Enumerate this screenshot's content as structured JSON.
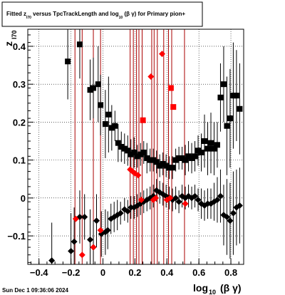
{
  "chart_data": {
    "type": "scatter",
    "title": {
      "prefix": "Fitted  z",
      "prefix_sub": "I70",
      "middle": "  versus TpcTrackLength and log",
      "middle_sub": "10",
      "suffix": " (β  γ) for Primary pion+"
    },
    "ylabel": {
      "main": "z",
      "sub": "I70"
    },
    "xlabel": {
      "main": "log",
      "sub": "10",
      "tail": "(β γ)"
    },
    "timestamp": "Sun Dec  1 09:36:06 2024",
    "xlim": [
      -0.47,
      0.88
    ],
    "ylim": [
      -0.175,
      0.445
    ],
    "xticks": [
      -0.4,
      -0.2,
      0,
      0.2,
      0.4,
      0.6,
      0.8
    ],
    "xtick_labels": [
      "−0.4",
      "−0.2",
      "0",
      "0.2",
      "0.4",
      "0.6",
      "0.8"
    ],
    "yticks": [
      -0.1,
      0,
      0.1,
      0.2,
      0.3,
      0.4
    ],
    "ytick_labels": [
      "−0.1",
      "0",
      "0.1",
      "0.2",
      "0.3",
      "0.4"
    ],
    "grid": true,
    "colors": {
      "black": "#000000",
      "red": "#ff0000",
      "darkred": "#aa0000"
    },
    "series": [
      {
        "marker": "square",
        "color": "#000000",
        "x": [
          -0.22,
          -0.145,
          -0.08,
          -0.06,
          -0.03,
          -0.015,
          0.015,
          0.035,
          0.055,
          0.075,
          0.095,
          0.115,
          0.135,
          0.155,
          0.175,
          0.195,
          0.215,
          0.235,
          0.255,
          0.275,
          0.295,
          0.315,
          0.335,
          0.355,
          0.375,
          0.395,
          0.415,
          0.435,
          0.455,
          0.475,
          0.495,
          0.515,
          0.535,
          0.555,
          0.575,
          0.595,
          0.615,
          0.635,
          0.655,
          0.675,
          0.695,
          0.715,
          0.735,
          0.755,
          0.775,
          0.795,
          0.815,
          0.835,
          0.855
        ],
        "y": [
          0.36,
          0.405,
          0.285,
          0.29,
          0.3,
          0.245,
          0.195,
          0.22,
          0.185,
          0.19,
          0.145,
          0.135,
          0.13,
          0.125,
          0.115,
          0.12,
          0.11,
          0.115,
          0.12,
          0.105,
          0.1,
          0.1,
          0.095,
          0.085,
          0.09,
          0.085,
          0.08,
          0.08,
          0.1,
          0.105,
          0.105,
          0.1,
          0.11,
          0.105,
          0.11,
          0.125,
          0.12,
          0.15,
          0.13,
          0.145,
          0.13,
          0.14,
          0.265,
          0.3,
          0.19,
          0.21,
          0.27,
          0.27,
          0.235
        ],
        "err": [
          0.1,
          0.09,
          0.08,
          0.08,
          0.1,
          0.08,
          0.09,
          0.1,
          0.06,
          0.04,
          0.05,
          0.04,
          0.04,
          0.04,
          0.04,
          0.04,
          0.03,
          0.03,
          0.03,
          0.04,
          0.03,
          0.03,
          0.03,
          0.03,
          0.03,
          0.03,
          0.03,
          0.03,
          0.03,
          0.03,
          0.03,
          0.04,
          0.04,
          0.04,
          0.04,
          0.04,
          0.05,
          0.07,
          0.07,
          0.08,
          0.07,
          0.06,
          0.09,
          0.1,
          0.13,
          0.13,
          0.14,
          0.12,
          0.12
        ]
      },
      {
        "marker": "diamond",
        "color": "#000000",
        "x": [
          -0.32,
          -0.2,
          -0.18,
          -0.145,
          -0.115,
          -0.08,
          -0.06,
          -0.04,
          -0.01,
          0.015,
          0.03,
          0.05,
          0.07,
          0.09,
          0.11,
          0.135,
          0.155,
          0.175,
          0.195,
          0.215,
          0.235,
          0.255,
          0.275,
          0.295,
          0.315,
          0.335,
          0.355,
          0.375,
          0.395,
          0.415,
          0.435,
          0.455,
          0.475,
          0.495,
          0.515,
          0.535,
          0.555,
          0.575,
          0.595,
          0.615,
          0.635,
          0.655,
          0.675,
          0.695,
          0.715,
          0.735,
          0.755,
          0.775,
          0.795,
          0.815,
          0.835,
          0.855
        ],
        "y": [
          -0.165,
          -0.14,
          -0.115,
          -0.05,
          -0.05,
          -0.11,
          -0.13,
          -0.06,
          -0.095,
          -0.09,
          -0.085,
          -0.055,
          -0.05,
          -0.045,
          -0.04,
          -0.03,
          -0.035,
          -0.025,
          -0.025,
          -0.02,
          -0.015,
          -0.01,
          -0.005,
          0.0,
          0.005,
          0.02,
          0.015,
          0.01,
          0.005,
          0.0,
          -0.005,
          0.0,
          -0.01,
          0.005,
          0.0,
          0.005,
          0.0,
          0.005,
          -0.005,
          -0.015,
          -0.02,
          -0.015,
          -0.015,
          -0.01,
          -0.005,
          0.005,
          -0.045,
          -0.05,
          -0.06,
          -0.04,
          -0.025,
          -0.02
        ],
        "err": [
          0.1,
          0.1,
          0.09,
          0.07,
          0.06,
          0.08,
          0.07,
          0.07,
          0.06,
          0.06,
          0.05,
          0.04,
          0.04,
          0.04,
          0.03,
          0.03,
          0.03,
          0.03,
          0.03,
          0.03,
          0.03,
          0.03,
          0.03,
          0.03,
          0.03,
          0.03,
          0.03,
          0.03,
          0.03,
          0.03,
          0.03,
          0.03,
          0.03,
          0.03,
          0.03,
          0.03,
          0.03,
          0.03,
          0.03,
          0.04,
          0.04,
          0.04,
          0.04,
          0.05,
          0.06,
          0.07,
          0.08,
          0.1,
          0.1,
          0.11,
          0.1,
          0.1
        ]
      },
      {
        "marker": "diamond",
        "color": "#ff0000",
        "x": [
          -0.17,
          -0.13,
          -0.06,
          -0.015,
          0.17,
          0.185,
          0.2,
          0.22,
          0.24,
          0.3,
          0.315,
          0.33,
          0.37,
          0.4,
          0.42,
          0.515
        ],
        "y": [
          -0.055,
          -0.15,
          -0.13,
          -0.085,
          0.075,
          0.07,
          0.065,
          0.06,
          -0.005,
          0.32,
          -0.005,
          0.0,
          0.38,
          -0.005,
          0.0,
          -0.015
        ],
        "err": [
          0,
          0,
          0,
          0,
          0,
          0,
          0,
          0,
          0,
          0,
          0,
          0,
          0,
          0,
          0,
          0
        ]
      },
      {
        "marker": "square",
        "color": "#ff0000",
        "x": [
          0.25,
          0.425,
          0.44
        ],
        "y": [
          0.205,
          0.29,
          0.24
        ],
        "err": [
          0,
          0,
          0
        ]
      }
    ],
    "vlines": {
      "color": "#aa0000",
      "x": [
        -0.175,
        -0.13,
        -0.06,
        -0.015,
        0.17,
        0.19,
        0.21,
        0.225,
        0.245,
        0.305,
        0.32,
        0.34,
        0.38,
        0.41,
        0.43,
        0.51
      ]
    }
  }
}
